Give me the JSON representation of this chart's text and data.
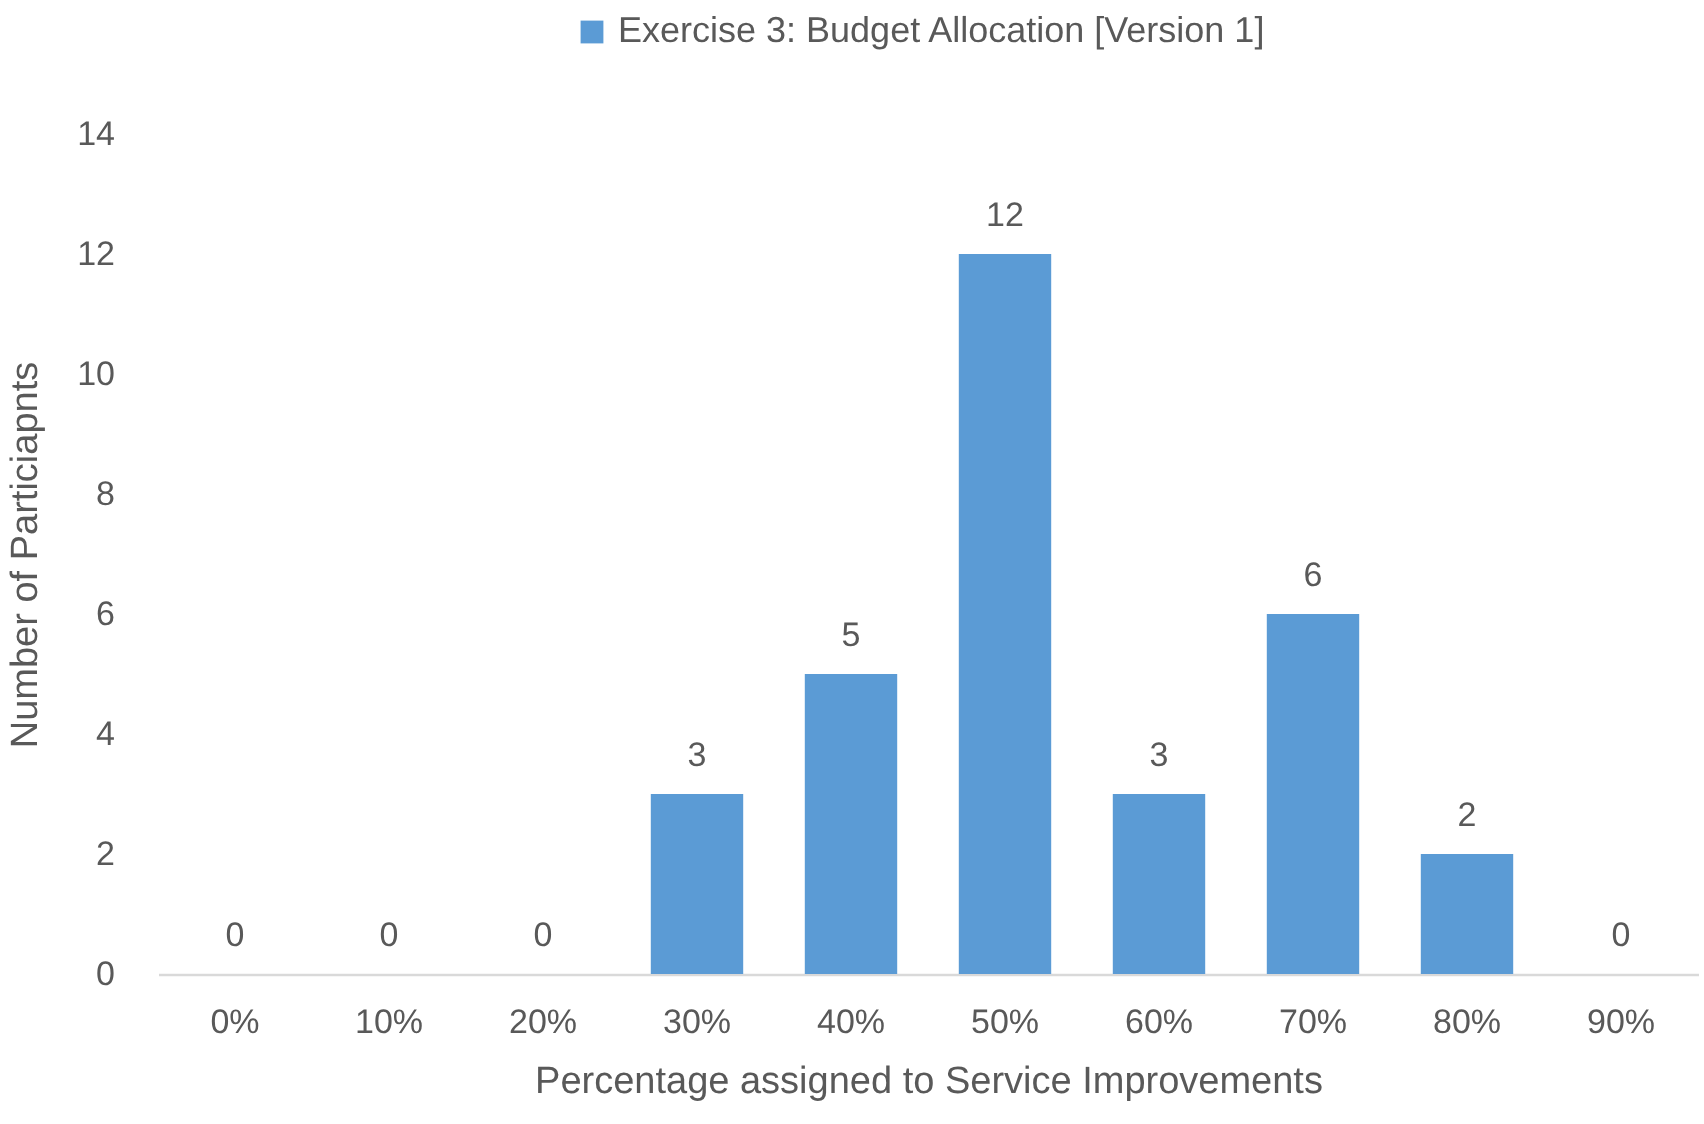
{
  "chart_data": {
    "type": "bar",
    "xlabel": "Percentage assigned to Service Improvements",
    "ylabel": "Number of Particiapnts",
    "categories": [
      "0%",
      "10%",
      "20%",
      "30%",
      "40%",
      "50%",
      "60%",
      "70%",
      "80%",
      "90%"
    ],
    "series": [
      {
        "name": "Exercise 3: Budget Allocation [Version 1]",
        "color": "#5b9bd5",
        "values": [
          0,
          0,
          0,
          3,
          5,
          12,
          3,
          6,
          2,
          0
        ]
      }
    ],
    "ylim": [
      0,
      14
    ],
    "yticks": [
      0,
      2,
      4,
      6,
      8,
      10,
      12,
      14
    ],
    "grid": false,
    "legend": "top",
    "data_labels": true
  }
}
